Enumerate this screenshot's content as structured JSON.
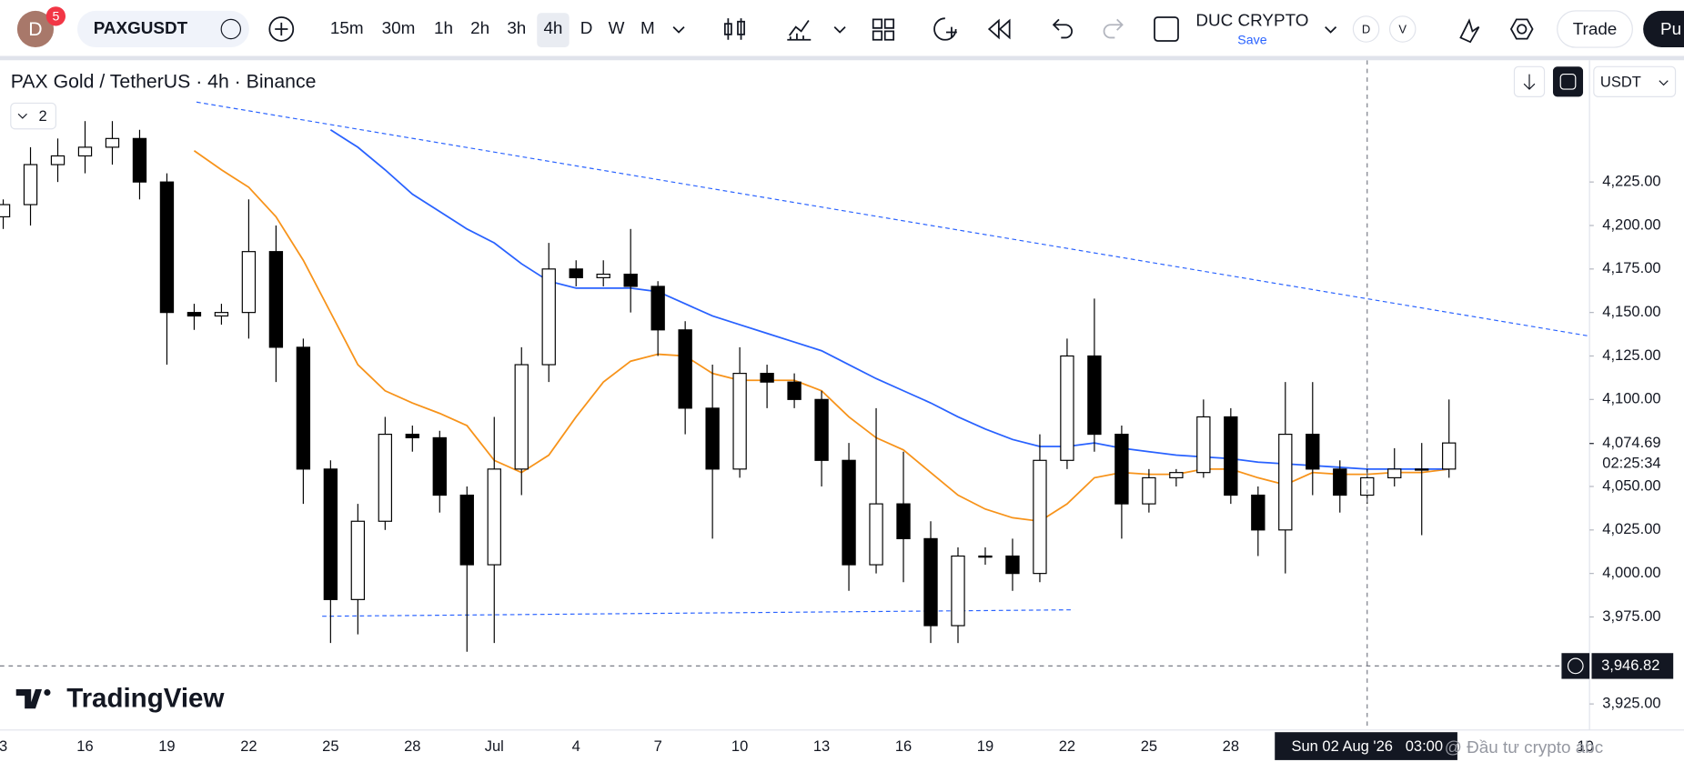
{
  "toolbar": {
    "avatar": "D",
    "badge": "5",
    "symbol": "PAXGUSDT",
    "intervals": [
      "15m",
      "30m",
      "1h",
      "2h",
      "3h",
      "4h",
      "D",
      "W",
      "M"
    ],
    "layout_name": "DUC CRYPTO",
    "save": "Save",
    "d_button": "D",
    "v_button": "V",
    "trade": "Trade",
    "publish": "Pu"
  },
  "chart_data": {
    "type": "candlestick",
    "title": "PAX Gold / TetherUS · 4h · Binance",
    "indicator_count": "2",
    "currency": "USDT",
    "up_color": "#ffffff",
    "down_color": "#000000",
    "open": [
      4205,
      4212,
      4235,
      4240,
      4245,
      4250,
      4225,
      4150,
      4148,
      4150,
      4185,
      4130,
      4060,
      3985,
      4030,
      4080,
      4078,
      4045,
      4005,
      4060,
      4120,
      4175,
      4170,
      4172,
      4165,
      4140,
      4095,
      4060,
      4115,
      4110,
      4100,
      4065,
      4005,
      4040,
      4020,
      3970,
      4010,
      4010,
      4000,
      4065,
      4125,
      4080,
      4040,
      4055,
      4058,
      4090,
      4045,
      4025,
      4080,
      4060,
      4045,
      4055,
      4060,
      4060
    ],
    "high": [
      4215,
      4245,
      4250,
      4260,
      4260,
      4255,
      4230,
      4155,
      4155,
      4215,
      4200,
      4135,
      4065,
      4040,
      4090,
      4085,
      4082,
      4050,
      4090,
      4130,
      4190,
      4180,
      4180,
      4198,
      4168,
      4145,
      4120,
      4130,
      4120,
      4115,
      4105,
      4075,
      4095,
      4070,
      4030,
      4015,
      4015,
      4020,
      4080,
      4135,
      4158,
      4085,
      4060,
      4060,
      4100,
      4095,
      4050,
      4110,
      4110,
      4065,
      4060,
      4072,
      4075,
      4100
    ],
    "low": [
      4198,
      4200,
      4225,
      4230,
      4235,
      4215,
      4120,
      4140,
      4143,
      4135,
      4110,
      4040,
      3960,
      3965,
      4025,
      4070,
      4035,
      3955,
      3960,
      4045,
      4110,
      4165,
      4165,
      4150,
      4125,
      4080,
      4020,
      4055,
      4095,
      4095,
      4050,
      3990,
      4000,
      3995,
      3960,
      3960,
      4005,
      3990,
      3995,
      4060,
      4070,
      4020,
      4035,
      4050,
      4055,
      4040,
      4010,
      4000,
      4045,
      4035,
      4040,
      4050,
      4022,
      4055
    ],
    "close": [
      4212,
      4235,
      4240,
      4245,
      4250,
      4225,
      4150,
      4148,
      4150,
      4185,
      4130,
      4060,
      3985,
      4030,
      4080,
      4078,
      4045,
      4005,
      4060,
      4120,
      4175,
      4170,
      4172,
      4165,
      4140,
      4095,
      4060,
      4115,
      4110,
      4100,
      4065,
      4005,
      4040,
      4020,
      3970,
      4010,
      4010,
      4000,
      4065,
      4125,
      4080,
      4040,
      4055,
      4058,
      4090,
      4045,
      4025,
      4080,
      4060,
      4045,
      4055,
      4060,
      4060,
      4075
    ],
    "series": [
      {
        "color": "#f7931a",
        "values": [
          null,
          null,
          null,
          null,
          null,
          null,
          null,
          4243,
          4232,
          4222,
          4205,
          4180,
          4150,
          4120,
          4105,
          4098,
          4092,
          4085,
          4065,
          4058,
          4068,
          4090,
          4110,
          4122,
          4126,
          4125,
          4115,
          4111,
          4111,
          4111,
          4105,
          4090,
          4078,
          4071,
          4058,
          4045,
          4037,
          4032,
          4030,
          4040,
          4055,
          4058,
          4057,
          4057,
          4060,
          4060,
          4055,
          4051,
          4058,
          4057,
          4057,
          4058,
          4058,
          4060
        ]
      },
      {
        "color": "#2962ff",
        "values": [
          null,
          null,
          null,
          null,
          null,
          null,
          null,
          null,
          null,
          null,
          null,
          null,
          4255,
          4245,
          4232,
          4218,
          4208,
          4198,
          4190,
          4178,
          4168,
          4164,
          4164,
          4164,
          4162,
          4155,
          4148,
          4143,
          4138,
          4133,
          4128,
          4120,
          4112,
          4105,
          4098,
          4090,
          4083,
          4077,
          4073,
          4073,
          4075,
          4072,
          4070,
          4068,
          4067,
          4066,
          4064,
          4063,
          4062,
          4061,
          4060,
          4060,
          4060,
          4060
        ]
      }
    ],
    "ylim": [
      3910,
      4295
    ],
    "yticks": [
      {
        "value": 4225,
        "label": "4,225.00"
      },
      {
        "value": 4200,
        "label": "4,200.00"
      },
      {
        "value": 4175,
        "label": "4,175.00"
      },
      {
        "value": 4150,
        "label": "4,150.00"
      },
      {
        "value": 4125,
        "label": "4,125.00"
      },
      {
        "value": 4100,
        "label": "4,100.00"
      },
      {
        "value": 4050,
        "label": "4,050.00"
      },
      {
        "value": 4025,
        "label": "4,025.00"
      },
      {
        "value": 4000,
        "label": "4,000.00"
      },
      {
        "value": 3975,
        "label": "3,975.00"
      },
      {
        "value": 3925,
        "label": "3,925.00"
      }
    ],
    "x_labels": [
      "3",
      "16",
      "19",
      "22",
      "25",
      "28",
      "Jul",
      "4",
      "7",
      "10",
      "13",
      "16",
      "19",
      "22",
      "25",
      "28",
      "10"
    ],
    "last_price": {
      "value": 4074.69,
      "label": "4,074.69"
    },
    "countdown": "02:25:34",
    "crosshair_price": {
      "value": 3946.82,
      "label": "3,946.82"
    },
    "crosshair_time": "Sun 02 Aug '26   03:00",
    "watermark": "@ Đầu tư crypto abc",
    "logo": "TradingView"
  }
}
